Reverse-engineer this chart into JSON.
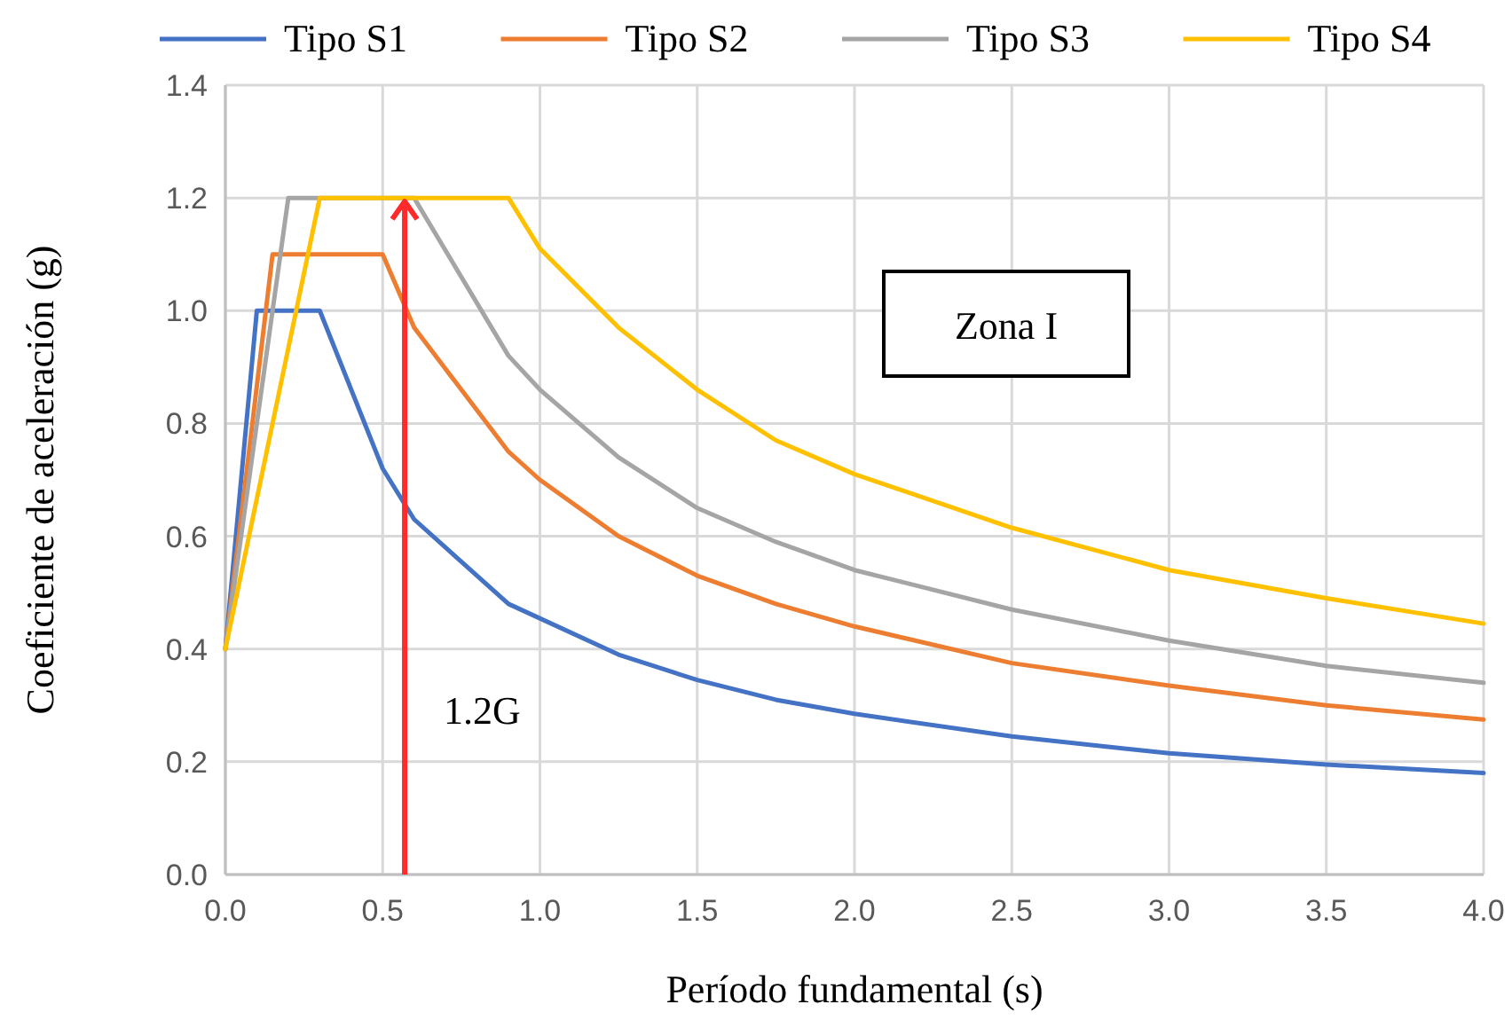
{
  "chart_data": {
    "type": "line",
    "xlabel": "Período fundamental (s)",
    "ylabel": "Coeficiente de aceleración (g)",
    "xlim": [
      0,
      4
    ],
    "xticks": [
      {
        "value": 0,
        "label": "0.0"
      },
      {
        "value": 0.5,
        "label": "0.5"
      },
      {
        "value": 1,
        "label": "1.0"
      },
      {
        "value": 1.5,
        "label": "1.5"
      },
      {
        "value": 2,
        "label": "2.0"
      },
      {
        "value": 2.5,
        "label": "2.5"
      },
      {
        "value": 3,
        "label": "3.0"
      },
      {
        "value": 3.5,
        "label": "3.5"
      },
      {
        "value": 4,
        "label": "4.0"
      }
    ],
    "ylim": [
      0,
      1.4
    ],
    "yticks": [
      {
        "value": 0,
        "label": "0.0"
      },
      {
        "value": 0.2,
        "label": "0.2"
      },
      {
        "value": 0.4,
        "label": "0.4"
      },
      {
        "value": 0.6,
        "label": "0.6"
      },
      {
        "value": 0.8,
        "label": "0.8"
      },
      {
        "value": 1,
        "label": "1.0"
      },
      {
        "value": 1.2,
        "label": "1.2"
      },
      {
        "value": 1.4,
        "label": "1.4"
      }
    ],
    "grid": true,
    "legend": "top",
    "line_style": "solid",
    "marker": "none",
    "series": [
      {
        "name": "Tipo S1",
        "color": "#4472c4",
        "x": [
          0,
          0.1,
          0.3,
          0.5,
          0.6,
          0.9,
          1.25,
          1.5,
          1.75,
          2,
          2.5,
          3,
          3.5,
          4
        ],
        "values": [
          0.4,
          1.0,
          1.0,
          0.72,
          0.63,
          0.48,
          0.39,
          0.345,
          0.31,
          0.285,
          0.245,
          0.215,
          0.195,
          0.18
        ]
      },
      {
        "name": "Tipo S2",
        "color": "#ed7d31",
        "x": [
          0,
          0.15,
          0.5,
          0.6,
          0.9,
          1,
          1.25,
          1.5,
          1.75,
          2,
          2.5,
          3,
          3.5,
          4
        ],
        "values": [
          0.4,
          1.1,
          1.1,
          0.97,
          0.75,
          0.7,
          0.6,
          0.53,
          0.48,
          0.44,
          0.375,
          0.335,
          0.3,
          0.275
        ]
      },
      {
        "name": "Tipo S3",
        "color": "#a5a5a5",
        "x": [
          0,
          0.2,
          0.6,
          0.9,
          1,
          1.25,
          1.5,
          1.75,
          2,
          2.5,
          3,
          3.5,
          4
        ],
        "values": [
          0.4,
          1.2,
          1.2,
          0.92,
          0.86,
          0.74,
          0.65,
          0.59,
          0.54,
          0.47,
          0.415,
          0.37,
          0.34
        ]
      },
      {
        "name": "Tipo S4",
        "color": "#ffc000",
        "x": [
          0,
          0.3,
          0.9,
          1,
          1.25,
          1.5,
          1.75,
          2,
          2.5,
          3,
          3.5,
          4
        ],
        "values": [
          0.4,
          1.2,
          1.2,
          1.11,
          0.97,
          0.86,
          0.77,
          0.71,
          0.615,
          0.54,
          0.49,
          0.445
        ]
      }
    ],
    "ref_lines": [
      {
        "axis": "x",
        "value": 0.57,
        "label": "1.2G",
        "color": "#ff2a2a"
      }
    ],
    "annotations": [
      "Zona I"
    ]
  }
}
